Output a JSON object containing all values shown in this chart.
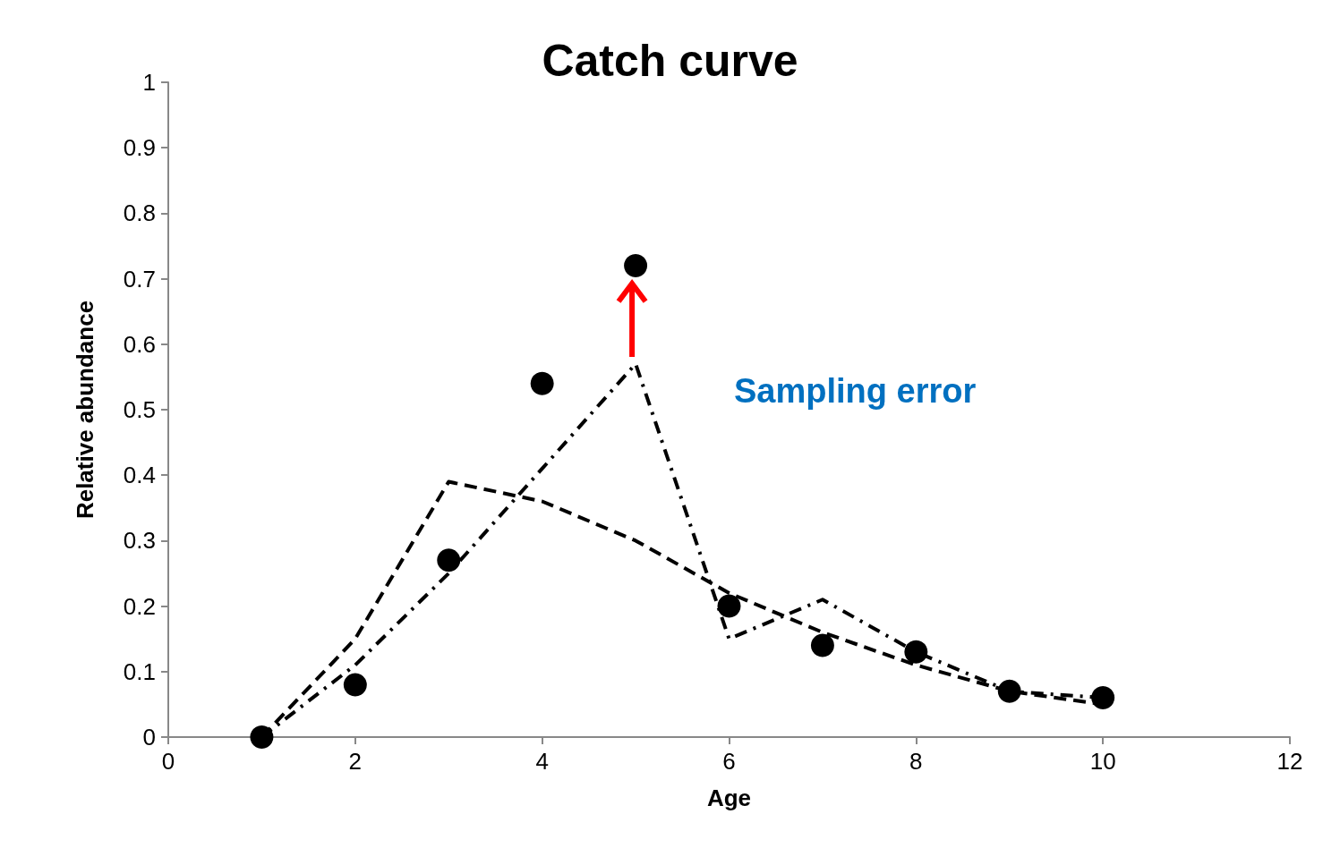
{
  "chart_data": {
    "type": "scatter",
    "title": "Catch curve",
    "xlabel": "Age",
    "ylabel": "Relative abundance",
    "annotations": [
      "Sampling error"
    ],
    "xlim": [
      0,
      12
    ],
    "xticks": [
      0,
      2,
      4,
      6,
      8,
      10,
      12
    ],
    "ylim": [
      0,
      1
    ],
    "yticks": [
      0,
      0.1,
      0.2,
      0.3,
      0.4,
      0.5,
      0.6,
      0.7,
      0.8,
      0.9,
      1
    ],
    "grid": false,
    "series": [
      {
        "color": "#000000",
        "marker": "circle",
        "x": [
          1,
          2,
          3,
          4,
          5,
          6,
          7,
          8,
          9,
          10
        ],
        "values": [
          0,
          0.08,
          0.27,
          0.54,
          0.72,
          0.2,
          0.14,
          0.13,
          0.07,
          0.06
        ]
      },
      {
        "type": "line",
        "color": "#000000",
        "marker": "none",
        "line_style": "dashed",
        "x": [
          1,
          2,
          3,
          4,
          5,
          6,
          7,
          8,
          9,
          10
        ],
        "values": [
          0,
          0.15,
          0.39,
          0.36,
          0.3,
          0.22,
          0.16,
          0.11,
          0.07,
          0.05
        ]
      },
      {
        "type": "line",
        "color": "#000000",
        "marker": "none",
        "line_style": "dashdot",
        "x": [
          1,
          2,
          3,
          4,
          5,
          6,
          7,
          8,
          9,
          10
        ],
        "values": [
          0,
          0.11,
          0.25,
          0.41,
          0.57,
          0.15,
          0.21,
          0.13,
          0.07,
          0.06
        ]
      }
    ]
  }
}
